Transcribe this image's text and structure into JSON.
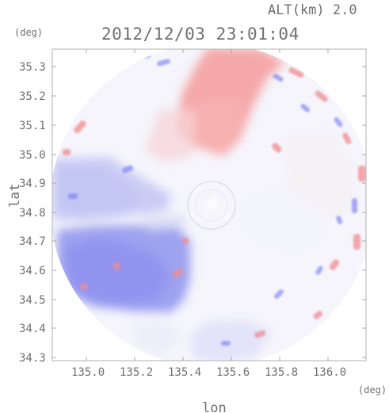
{
  "header": {
    "altitude": "ALT(km) 2.0",
    "datetime": "2012/12/03 23:01:04"
  },
  "axes": {
    "y_unit": "(deg)",
    "x_unit": "(deg)",
    "y_title": "lat",
    "x_title": "lon",
    "y_ticks": [
      "35.3",
      "35.2",
      "35.1",
      "35.0",
      "34.9",
      "34.8",
      "34.7",
      "34.6",
      "34.5",
      "34.4",
      "34.3"
    ],
    "x_ticks": [
      "135.0",
      "135.2",
      "135.4",
      "135.6",
      "135.8",
      "136.0"
    ],
    "xlim": [
      134.88,
      136.17
    ],
    "ylim": [
      34.27,
      35.36
    ]
  },
  "map": {
    "center_lon": 135.52,
    "center_lat": 34.81,
    "colors": {
      "background": "#ffffff",
      "approaching": "#7f83f0",
      "receding": "#f28a8a",
      "neutral": "#f4f4fb"
    }
  }
}
